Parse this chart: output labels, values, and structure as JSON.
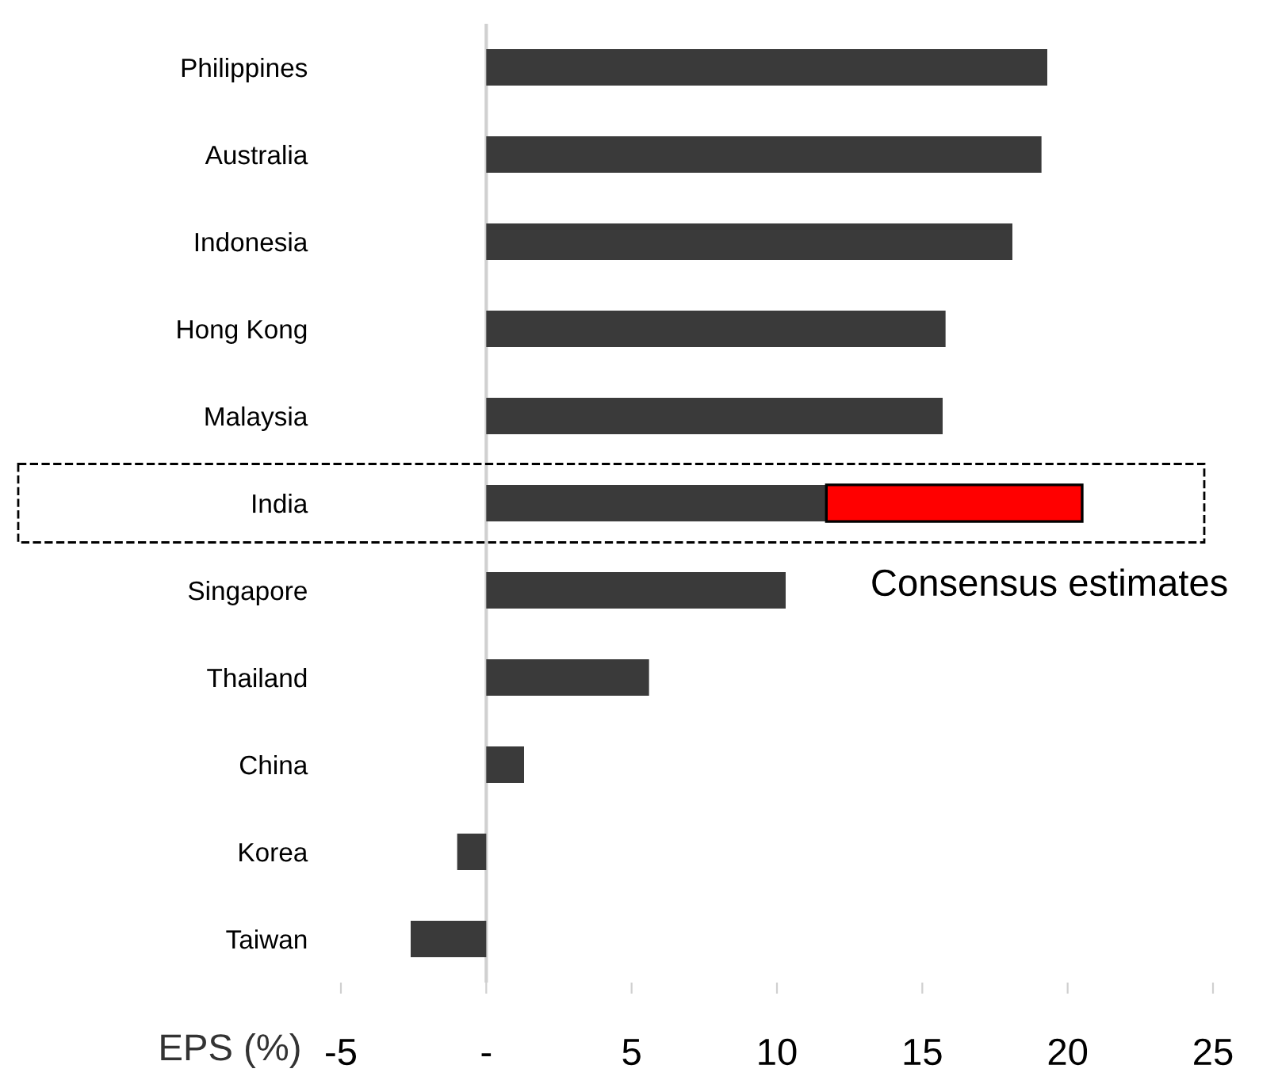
{
  "chart_data": {
    "type": "bar",
    "orientation": "horizontal",
    "stacked": true,
    "xlabel": "EPS (%)",
    "categories": [
      "Philippines",
      "Australia",
      "Indonesia",
      "Hong Kong",
      "Malaysia",
      "India",
      "Singapore",
      "Thailand",
      "China",
      "Korea",
      "Taiwan"
    ],
    "series": [
      {
        "color": "#3a3a3a",
        "values": [
          19.3,
          19.1,
          18.1,
          15.8,
          15.7,
          11.7,
          10.3,
          5.6,
          1.3,
          -1.0,
          -2.6
        ]
      },
      {
        "name": "Consensus estimates",
        "color": "#ff0000",
        "values": [
          null,
          null,
          null,
          null,
          null,
          8.8,
          null,
          null,
          null,
          null,
          null
        ]
      }
    ],
    "xlim": [
      -5,
      25
    ],
    "xticks": [
      -5,
      {
        "value": 0,
        "label": "-"
      },
      5,
      10,
      15,
      20,
      25
    ],
    "ref_lines": [
      {
        "axis": "x",
        "value": 0,
        "color": "#d0d0d0"
      }
    ],
    "grid": false,
    "legend": false
  }
}
